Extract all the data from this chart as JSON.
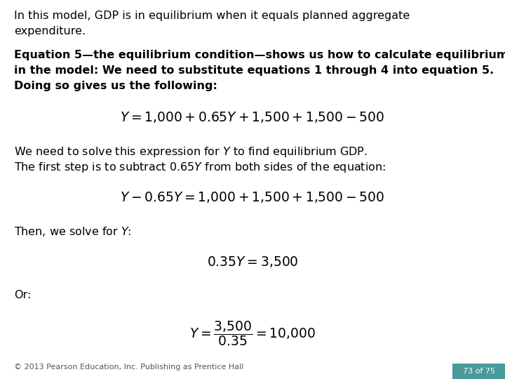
{
  "background_color": "#ffffff",
  "text_color": "#000000",
  "footer_color": "#555555",
  "page_number_bg": "#4a9a9a",
  "page_number_text": "#ffffff",
  "para1_line1": "In this model, GDP is in equilibrium when it equals planned aggregate",
  "para1_line2": "expenditure.",
  "para2_line1": "Equation 5—the equilibrium condition—shows us how to calculate equilibrium",
  "para2_line2": "in the model: We need to substitute equations 1 through 4 into equation 5.",
  "para2_line3": "Doing so gives us the following:",
  "eq1": "$Y = 1{,}000 + 0.65Y + 1{,}500 + 1{,}500 - 500$",
  "para3_line1": "We need to solve this expression for $Y$ to find equilibrium GDP.",
  "para3_line2": "The first step is to subtract 0.65$Y$ from both sides of the equation:",
  "eq2": "$Y - 0.65Y = 1{,}000 + 1{,}500 + 1{,}500 - 500$",
  "para4_line1": "Then, we solve for $Y$:",
  "eq3": "$0.35Y = 3{,}500$",
  "para5_line1": "Or:",
  "eq4": "$Y = \\dfrac{3{,}500}{0.35} = 10{,}000$",
  "footer_text": "© 2013 Pearson Education, Inc. Publishing as Prentice Hall",
  "page_number": "73 of 75",
  "body_fontsize": 11.5,
  "eq_fontsize": 13.5,
  "footer_fontsize": 8
}
